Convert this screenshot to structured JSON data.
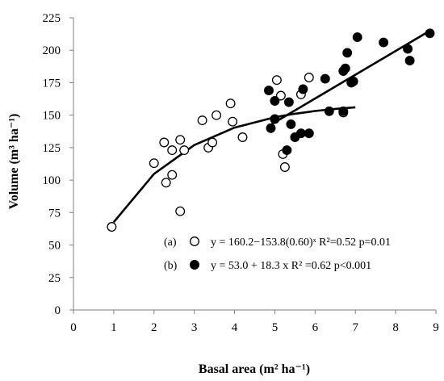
{
  "chart_data": {
    "type": "scatter",
    "xlabel": "Basal area (m² ha⁻¹)",
    "ylabel": "Volume (m³ ha⁻¹)",
    "xlim": [
      0,
      9
    ],
    "ylim": [
      0,
      225
    ],
    "x_ticks": [
      0,
      1,
      2,
      3,
      4,
      5,
      6,
      7,
      8,
      9
    ],
    "y_ticks": [
      0,
      25,
      50,
      75,
      100,
      125,
      150,
      175,
      200,
      225
    ],
    "grid": false,
    "legend_position": "bottom-right",
    "series": [
      {
        "label": "(a)",
        "marker": "open-circle",
        "equation": "y = 160.2−153.8(0.60)ˣ  R²=0.52  p=0.01",
        "points": [
          [
            0.95,
            64
          ],
          [
            2.0,
            113
          ],
          [
            2.25,
            129
          ],
          [
            2.3,
            98
          ],
          [
            2.45,
            123
          ],
          [
            2.45,
            104
          ],
          [
            2.65,
            131
          ],
          [
            2.65,
            76
          ],
          [
            2.75,
            123
          ],
          [
            3.2,
            146
          ],
          [
            3.35,
            125
          ],
          [
            3.45,
            129
          ],
          [
            3.55,
            150
          ],
          [
            3.9,
            159
          ],
          [
            3.95,
            145
          ],
          [
            4.2,
            133
          ],
          [
            5.05,
            177
          ],
          [
            5.15,
            165
          ],
          [
            5.2,
            120
          ],
          [
            5.25,
            110
          ],
          [
            5.65,
            166
          ],
          [
            5.85,
            179
          ],
          [
            6.7,
            152
          ]
        ],
        "fit": [
          [
            1.0,
            67.6
          ],
          [
            2.0,
            104.8
          ],
          [
            3.0,
            127.0
          ],
          [
            4.0,
            140.4
          ],
          [
            5.0,
            148.4
          ],
          [
            5.5,
            151.1
          ],
          [
            6.0,
            153.2
          ],
          [
            6.5,
            154.8
          ],
          [
            7.0,
            156.1
          ]
        ]
      },
      {
        "label": "(b)",
        "marker": "filled-circle",
        "equation": "y = 53.0 + 18.3 x  R² =0.62  p<0.001",
        "points": [
          [
            4.85,
            169
          ],
          [
            4.9,
            140
          ],
          [
            5.0,
            161
          ],
          [
            5.0,
            147
          ],
          [
            5.3,
            123
          ],
          [
            5.35,
            160
          ],
          [
            5.4,
            143
          ],
          [
            5.5,
            133
          ],
          [
            5.65,
            136
          ],
          [
            5.7,
            170
          ],
          [
            5.85,
            136
          ],
          [
            6.25,
            178
          ],
          [
            6.35,
            153
          ],
          [
            6.7,
            153
          ],
          [
            6.7,
            184
          ],
          [
            6.75,
            186
          ],
          [
            6.8,
            198
          ],
          [
            6.9,
            175
          ],
          [
            6.95,
            176
          ],
          [
            7.05,
            210
          ],
          [
            7.7,
            206
          ],
          [
            8.3,
            201
          ],
          [
            8.35,
            192
          ],
          [
            8.85,
            213
          ]
        ],
        "fit": [
          [
            4.85,
            141.8
          ],
          [
            8.85,
            215.0
          ]
        ]
      }
    ]
  }
}
